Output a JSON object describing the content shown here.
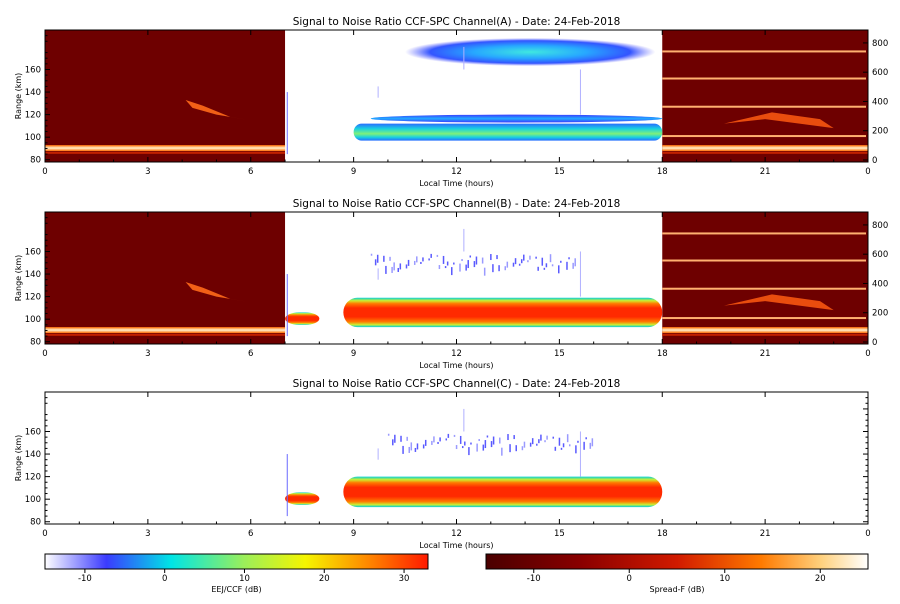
{
  "chart_data": [
    {
      "type": "heatmap",
      "title": "Signal to Noise Ratio CCF-SPC Channel(A) - Date: 24-Feb-2018",
      "xlabel": "Local Time (hours)",
      "ylabel": "Range (km)",
      "xlim": [
        0,
        24
      ],
      "ylim": [
        78,
        195
      ],
      "x_ticks": [
        "0",
        "3",
        "6",
        "9",
        "12",
        "15",
        "18",
        "21",
        "0"
      ],
      "y_ticks": [
        "80",
        "100",
        "120",
        "140",
        "160"
      ],
      "right_ticks": [
        "0",
        "200",
        "400",
        "600",
        "800"
      ],
      "night_ranges_hours": [
        [
          0,
          7
        ],
        [
          18,
          24
        ]
      ],
      "day_window_hours": [
        7,
        18
      ],
      "ccf_echo_bands": [
        {
          "t_start": 9.0,
          "t_end": 18.0,
          "range_low_km": 97,
          "range_high_km": 112,
          "snr_db": 4
        },
        {
          "t_start": 9.5,
          "t_end": 18.0,
          "range_low_km": 113,
          "range_high_km": 120,
          "snr_db": -2
        },
        {
          "t_start": 10.5,
          "t_end": 17.8,
          "range_low_km": 163,
          "range_high_km": 188,
          "snr_db": -4
        }
      ],
      "spread_f_lines_km": [
        92,
        101,
        127,
        152,
        176
      ]
    },
    {
      "type": "heatmap",
      "title": "Signal to Noise Ratio CCF-SPC Channel(B) - Date: 24-Feb-2018",
      "xlabel": "Local Time (hours)",
      "ylabel": "Range (km)",
      "xlim": [
        0,
        24
      ],
      "ylim": [
        78,
        195
      ],
      "x_ticks": [
        "0",
        "3",
        "6",
        "9",
        "12",
        "15",
        "18",
        "21",
        "0"
      ],
      "y_ticks": [
        "80",
        "100",
        "120",
        "140",
        "160"
      ],
      "right_ticks": [
        "0",
        "200",
        "400",
        "600",
        "800"
      ],
      "night_ranges_hours": [
        [
          0,
          7
        ],
        [
          18,
          24
        ]
      ],
      "day_window_hours": [
        7,
        18
      ],
      "ccf_echo_bands": [
        {
          "t_start": 7.0,
          "t_end": 8.0,
          "range_low_km": 95,
          "range_high_km": 106,
          "snr_db": 30
        },
        {
          "t_start": 8.7,
          "t_end": 18.0,
          "range_low_km": 93,
          "range_high_km": 119,
          "snr_db": 30
        },
        {
          "t_start": 9.5,
          "t_end": 15.5,
          "range_low_km": 145,
          "range_high_km": 158,
          "snr_db": -8
        }
      ],
      "spread_f_lines_km": [
        92,
        101,
        127,
        152,
        176
      ]
    },
    {
      "type": "heatmap",
      "title": "Signal to Noise Ratio CCF-SPC Channel(C) - Date: 24-Feb-2018",
      "xlabel": "Local Time (hours)",
      "ylabel": "Range (km)",
      "xlim": [
        0,
        24
      ],
      "ylim": [
        78,
        195
      ],
      "x_ticks": [
        "0",
        "3",
        "6",
        "9",
        "12",
        "15",
        "18",
        "21",
        "0"
      ],
      "y_ticks": [
        "80",
        "100",
        "120",
        "140",
        "160"
      ],
      "day_window_hours": [
        7,
        18
      ],
      "ccf_echo_bands": [
        {
          "t_start": 7.0,
          "t_end": 8.0,
          "range_low_km": 95,
          "range_high_km": 106,
          "snr_db": 28
        },
        {
          "t_start": 8.7,
          "t_end": 18.0,
          "range_low_km": 93,
          "range_high_km": 120,
          "snr_db": 28
        },
        {
          "t_start": 10.0,
          "t_end": 16.0,
          "range_low_km": 145,
          "range_high_km": 158,
          "snr_db": -8
        }
      ]
    }
  ],
  "colorbars": [
    {
      "label": "EEJ/CCF (dB)",
      "range_db": [
        -15,
        33
      ],
      "ticks": [
        "-10",
        "0",
        "10",
        "20",
        "30"
      ]
    },
    {
      "label": "Spread-F (dB)",
      "range_db": [
        -15,
        25
      ],
      "ticks": [
        "-10",
        "0",
        "10",
        "20"
      ]
    }
  ],
  "colors": {
    "night_background": "#6e0000",
    "ccf_colormap": [
      "#ffffff",
      "#3b3bff",
      "#00e5e5",
      "#9bef5a",
      "#f5f500",
      "#ff8a00",
      "#ff1a00"
    ],
    "spread_colormap": [
      "#4a0000",
      "#8a0000",
      "#d11a00",
      "#ff7a00",
      "#ffd280",
      "#ffffff"
    ]
  }
}
